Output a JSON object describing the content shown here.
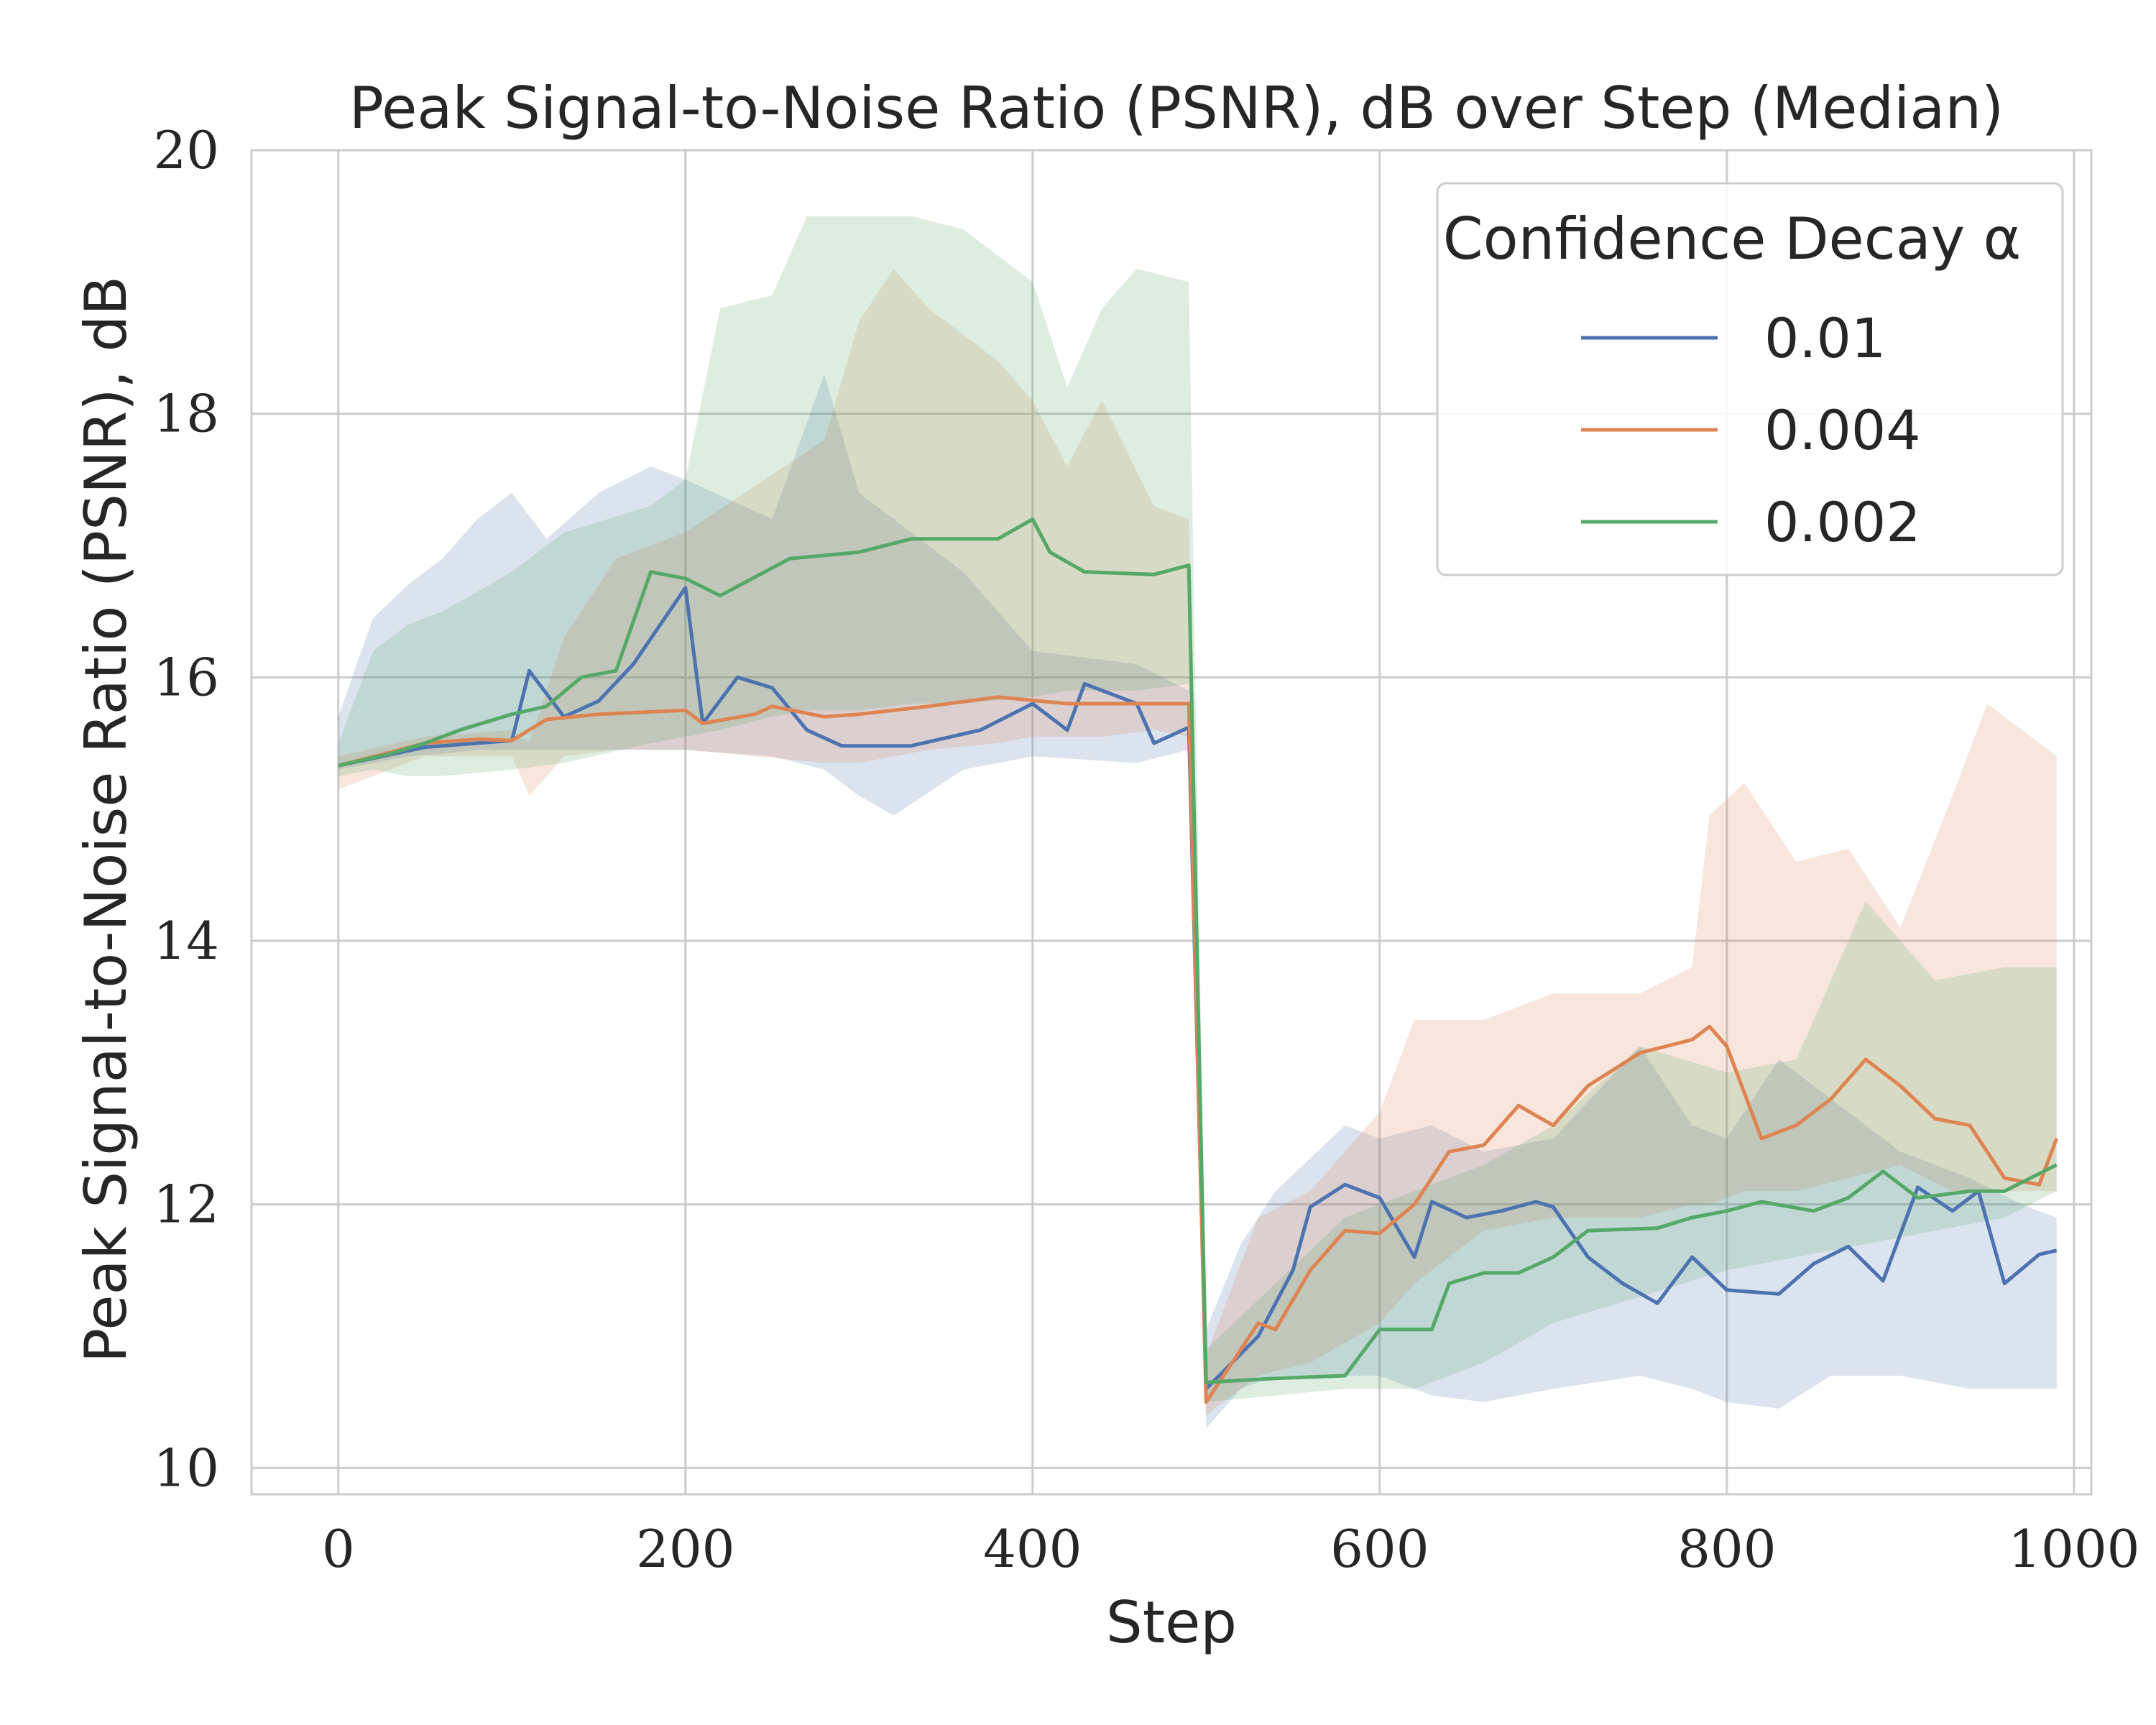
{
  "chart_data": {
    "type": "line",
    "title": "Peak Signal-to-Noise Ratio (PSNR), dB over Step (Median)",
    "xlabel": "Step",
    "ylabel": "Peak Signal-to-Noise Ratio (PSNR), dB",
    "xlim": [
      -50,
      1010
    ],
    "ylim": [
      9.8,
      20
    ],
    "grid": true,
    "x_ticks": [
      0,
      200,
      400,
      600,
      800,
      1000
    ],
    "x_tick_labels": [
      "0",
      "200",
      "400",
      "600",
      "800",
      "1000"
    ],
    "y_ticks": [
      10,
      12,
      14,
      16,
      18,
      20
    ],
    "y_tick_labels": [
      "10",
      "12",
      "14",
      "16",
      "18",
      "20"
    ],
    "legend": {
      "title": "Confidence Decay α",
      "placement": "top-right"
    },
    "series": [
      {
        "name": "0.01",
        "color": "#4c72b0",
        "points": [
          [
            0,
            15.33
          ],
          [
            50,
            15.47
          ],
          [
            100,
            15.52
          ],
          [
            110,
            16.05
          ],
          [
            130,
            15.7
          ],
          [
            150,
            15.82
          ],
          [
            170,
            16.1
          ],
          [
            200,
            16.68
          ],
          [
            210,
            15.65
          ],
          [
            230,
            16.0
          ],
          [
            250,
            15.92
          ],
          [
            270,
            15.6
          ],
          [
            290,
            15.48
          ],
          [
            330,
            15.48
          ],
          [
            370,
            15.6
          ],
          [
            400,
            15.8
          ],
          [
            420,
            15.6
          ],
          [
            430,
            15.95
          ],
          [
            460,
            15.8
          ],
          [
            470,
            15.5
          ],
          [
            490,
            15.62
          ],
          [
            500,
            10.6
          ],
          [
            530,
            11.0
          ],
          [
            550,
            11.5
          ],
          [
            560,
            11.98
          ],
          [
            580,
            12.15
          ],
          [
            600,
            12.05
          ],
          [
            620,
            11.6
          ],
          [
            630,
            12.02
          ],
          [
            650,
            11.9
          ],
          [
            670,
            11.95
          ],
          [
            690,
            12.02
          ],
          [
            700,
            11.98
          ],
          [
            720,
            11.6
          ],
          [
            740,
            11.4
          ],
          [
            760,
            11.25
          ],
          [
            780,
            11.6
          ],
          [
            800,
            11.35
          ],
          [
            830,
            11.32
          ],
          [
            850,
            11.55
          ],
          [
            870,
            11.68
          ],
          [
            890,
            11.42
          ],
          [
            910,
            12.13
          ],
          [
            930,
            11.95
          ],
          [
            945,
            12.1
          ],
          [
            960,
            11.4
          ],
          [
            980,
            11.62
          ],
          [
            990,
            11.65
          ]
        ],
        "band": [
          [
            0,
            15.7,
            15.3
          ],
          [
            20,
            16.45,
            15.35
          ],
          [
            40,
            16.7,
            15.4
          ],
          [
            60,
            16.9,
            15.42
          ],
          [
            80,
            17.2,
            15.45
          ],
          [
            100,
            17.4,
            15.45
          ],
          [
            120,
            17.05,
            15.45
          ],
          [
            150,
            17.4,
            15.45
          ],
          [
            180,
            17.6,
            15.45
          ],
          [
            200,
            17.5,
            15.45
          ],
          [
            250,
            17.2,
            15.4
          ],
          [
            280,
            18.3,
            15.3
          ],
          [
            300,
            17.4,
            15.1
          ],
          [
            320,
            17.2,
            14.95
          ],
          [
            360,
            16.8,
            15.3
          ],
          [
            400,
            16.2,
            15.4
          ],
          [
            460,
            16.1,
            15.35
          ],
          [
            490,
            15.9,
            15.45
          ],
          [
            500,
            11.05,
            10.3
          ],
          [
            520,
            11.7,
            10.6
          ],
          [
            540,
            12.1,
            10.7
          ],
          [
            580,
            12.6,
            10.7
          ],
          [
            600,
            12.5,
            10.7
          ],
          [
            630,
            12.6,
            10.55
          ],
          [
            660,
            12.4,
            10.5
          ],
          [
            700,
            12.5,
            10.6
          ],
          [
            750,
            13.2,
            10.7
          ],
          [
            780,
            12.6,
            10.6
          ],
          [
            800,
            12.5,
            10.5
          ],
          [
            830,
            13.1,
            10.45
          ],
          [
            860,
            12.8,
            10.7
          ],
          [
            900,
            12.4,
            10.7
          ],
          [
            940,
            12.2,
            10.6
          ],
          [
            970,
            12.0,
            10.6
          ],
          [
            990,
            11.9,
            10.6
          ]
        ]
      },
      {
        "name": "0.004",
        "color": "#dd8452",
        "points": [
          [
            0,
            15.33
          ],
          [
            50,
            15.5
          ],
          [
            80,
            15.53
          ],
          [
            100,
            15.52
          ],
          [
            120,
            15.68
          ],
          [
            150,
            15.72
          ],
          [
            200,
            15.75
          ],
          [
            210,
            15.65
          ],
          [
            240,
            15.72
          ],
          [
            250,
            15.78
          ],
          [
            280,
            15.7
          ],
          [
            300,
            15.72
          ],
          [
            340,
            15.78
          ],
          [
            380,
            15.85
          ],
          [
            420,
            15.8
          ],
          [
            460,
            15.8
          ],
          [
            490,
            15.8
          ],
          [
            500,
            10.5
          ],
          [
            530,
            11.1
          ],
          [
            540,
            11.05
          ],
          [
            560,
            11.5
          ],
          [
            580,
            11.8
          ],
          [
            600,
            11.78
          ],
          [
            620,
            12.0
          ],
          [
            640,
            12.4
          ],
          [
            660,
            12.45
          ],
          [
            680,
            12.75
          ],
          [
            700,
            12.6
          ],
          [
            720,
            12.9
          ],
          [
            750,
            13.15
          ],
          [
            780,
            13.25
          ],
          [
            790,
            13.35
          ],
          [
            800,
            13.2
          ],
          [
            820,
            12.5
          ],
          [
            840,
            12.6
          ],
          [
            860,
            12.8
          ],
          [
            880,
            13.1
          ],
          [
            900,
            12.9
          ],
          [
            920,
            12.65
          ],
          [
            940,
            12.6
          ],
          [
            960,
            12.2
          ],
          [
            980,
            12.15
          ],
          [
            990,
            12.5
          ]
        ],
        "band": [
          [
            0,
            15.4,
            15.15
          ],
          [
            50,
            15.55,
            15.4
          ],
          [
            100,
            15.6,
            15.4
          ],
          [
            110,
            15.5,
            15.1
          ],
          [
            130,
            16.3,
            15.4
          ],
          [
            160,
            16.9,
            15.45
          ],
          [
            200,
            17.1,
            15.45
          ],
          [
            240,
            17.45,
            15.4
          ],
          [
            280,
            17.8,
            15.35
          ],
          [
            300,
            18.7,
            15.35
          ],
          [
            320,
            19.1,
            15.4
          ],
          [
            340,
            18.8,
            15.45
          ],
          [
            380,
            18.4,
            15.5
          ],
          [
            400,
            18.1,
            15.55
          ],
          [
            420,
            17.6,
            15.55
          ],
          [
            440,
            18.1,
            15.55
          ],
          [
            470,
            17.3,
            15.6
          ],
          [
            490,
            17.2,
            15.55
          ],
          [
            500,
            10.85,
            10.4
          ],
          [
            530,
            11.9,
            10.7
          ],
          [
            560,
            12.1,
            10.8
          ],
          [
            600,
            12.7,
            11.1
          ],
          [
            620,
            13.4,
            11.4
          ],
          [
            660,
            13.4,
            11.8
          ],
          [
            700,
            13.6,
            11.9
          ],
          [
            750,
            13.6,
            11.9
          ],
          [
            780,
            13.8,
            12.0
          ],
          [
            790,
            14.95,
            12.0
          ],
          [
            810,
            15.2,
            12.1
          ],
          [
            840,
            14.6,
            12.1
          ],
          [
            870,
            14.7,
            12.2
          ],
          [
            900,
            14.1,
            12.3
          ],
          [
            930,
            15.1,
            12.1
          ],
          [
            950,
            15.8,
            12.1
          ],
          [
            990,
            15.4,
            12.1
          ]
        ]
      },
      {
        "name": "0.002",
        "color": "#55a868",
        "points": [
          [
            0,
            15.33
          ],
          [
            30,
            15.42
          ],
          [
            50,
            15.5
          ],
          [
            70,
            15.6
          ],
          [
            100,
            15.72
          ],
          [
            120,
            15.78
          ],
          [
            140,
            16.0
          ],
          [
            160,
            16.05
          ],
          [
            180,
            16.8
          ],
          [
            200,
            16.75
          ],
          [
            220,
            16.62
          ],
          [
            260,
            16.9
          ],
          [
            300,
            16.95
          ],
          [
            330,
            17.05
          ],
          [
            380,
            17.05
          ],
          [
            400,
            17.2
          ],
          [
            410,
            16.95
          ],
          [
            430,
            16.8
          ],
          [
            470,
            16.78
          ],
          [
            490,
            16.85
          ],
          [
            500,
            10.65
          ],
          [
            540,
            10.68
          ],
          [
            580,
            10.7
          ],
          [
            600,
            11.05
          ],
          [
            630,
            11.05
          ],
          [
            640,
            11.4
          ],
          [
            660,
            11.48
          ],
          [
            680,
            11.48
          ],
          [
            700,
            11.6
          ],
          [
            720,
            11.8
          ],
          [
            760,
            11.82
          ],
          [
            780,
            11.9
          ],
          [
            800,
            11.95
          ],
          [
            820,
            12.02
          ],
          [
            850,
            11.95
          ],
          [
            870,
            12.05
          ],
          [
            890,
            12.25
          ],
          [
            910,
            12.05
          ],
          [
            940,
            12.1
          ],
          [
            960,
            12.1
          ],
          [
            990,
            12.3
          ]
        ],
        "band": [
          [
            0,
            15.5,
            15.25
          ],
          [
            20,
            16.2,
            15.3
          ],
          [
            40,
            16.4,
            15.25
          ],
          [
            60,
            16.5,
            15.25
          ],
          [
            100,
            16.8,
            15.3
          ],
          [
            130,
            17.1,
            15.35
          ],
          [
            180,
            17.3,
            15.5
          ],
          [
            200,
            17.5,
            15.55
          ],
          [
            220,
            18.8,
            15.6
          ],
          [
            250,
            18.9,
            15.7
          ],
          [
            270,
            19.5,
            15.75
          ],
          [
            300,
            19.5,
            15.75
          ],
          [
            330,
            19.5,
            15.8
          ],
          [
            360,
            19.4,
            15.8
          ],
          [
            400,
            19.0,
            15.85
          ],
          [
            420,
            18.2,
            15.9
          ],
          [
            440,
            18.8,
            15.9
          ],
          [
            460,
            19.1,
            15.9
          ],
          [
            490,
            19.0,
            15.95
          ],
          [
            500,
            10.9,
            10.5
          ],
          [
            540,
            11.4,
            10.55
          ],
          [
            580,
            11.9,
            10.6
          ],
          [
            620,
            12.1,
            10.6
          ],
          [
            660,
            12.3,
            10.8
          ],
          [
            700,
            12.6,
            11.1
          ],
          [
            750,
            13.2,
            11.3
          ],
          [
            800,
            13.0,
            11.5
          ],
          [
            840,
            13.1,
            11.6
          ],
          [
            880,
            14.3,
            11.7
          ],
          [
            920,
            13.7,
            11.8
          ],
          [
            960,
            13.8,
            11.9
          ],
          [
            990,
            13.8,
            12.1
          ]
        ]
      }
    ]
  }
}
